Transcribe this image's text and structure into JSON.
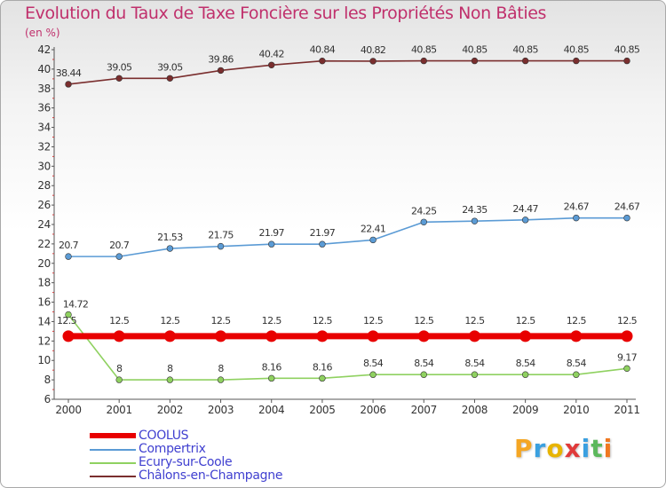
{
  "chart_data": {
    "type": "line",
    "title": "Evolution du Taux de Taxe Foncière sur les Propriétés Non Bâties",
    "unit_label": "(en %)",
    "xlabel": "",
    "ylabel": "",
    "x": [
      "2000",
      "2001",
      "2002",
      "2003",
      "2004",
      "2005",
      "2006",
      "2007",
      "2008",
      "2009",
      "2010",
      "2011"
    ],
    "ylim": [
      6,
      42
    ],
    "yticks": [
      6,
      8,
      10,
      12,
      14,
      16,
      18,
      20,
      22,
      24,
      26,
      28,
      30,
      32,
      34,
      36,
      38,
      40,
      42
    ],
    "grid": false,
    "legend_position": "bottom-left",
    "series": [
      {
        "name": "COOLUS",
        "color": "#e80000",
        "values": [
          12.5,
          12.5,
          12.5,
          12.5,
          12.5,
          12.5,
          12.5,
          12.5,
          12.5,
          12.5,
          12.5,
          12.5
        ],
        "labels": [
          "12.5",
          "12.5",
          "12.5",
          "12.5",
          "12.5",
          "12.5",
          "12.5",
          "12.5",
          "12.5",
          "12.5",
          "12.5",
          "12.5"
        ]
      },
      {
        "name": "Compertrix",
        "color": "#5b9bd5",
        "values": [
          20.7,
          20.7,
          21.53,
          21.75,
          21.97,
          21.97,
          22.41,
          24.25,
          24.35,
          24.47,
          24.67,
          24.67
        ],
        "labels": [
          "20.7",
          "20.7",
          "21.53",
          "21.75",
          "21.97",
          "21.97",
          "22.41",
          "24.25",
          "24.35",
          "24.47",
          "24.67",
          "24.67"
        ]
      },
      {
        "name": "Ecury-sur-Coole",
        "color": "#8fd160",
        "values": [
          14.72,
          8,
          8,
          8,
          8.16,
          8.16,
          8.54,
          8.54,
          8.54,
          8.54,
          8.54,
          9.17
        ],
        "labels": [
          "14.72",
          "8",
          "8",
          "8",
          "8.16",
          "8.16",
          "8.54",
          "8.54",
          "8.54",
          "8.54",
          "8.54",
          "9.17"
        ]
      },
      {
        "name": "Châlons-en-Champagne",
        "color": "#7a2e2e",
        "values": [
          38.44,
          39.05,
          39.05,
          39.86,
          40.42,
          40.84,
          40.82,
          40.85,
          40.85,
          40.85,
          40.85,
          40.85
        ],
        "labels": [
          "38.44",
          "39.05",
          "39.05",
          "39.86",
          "40.42",
          "40.84",
          "40.82",
          "40.85",
          "40.85",
          "40.85",
          "40.85",
          "40.85"
        ]
      }
    ]
  },
  "logo": {
    "text": "Proxiti",
    "colors": [
      "#f5a623",
      "#3aa0e0",
      "#e8b400",
      "#e03a3a",
      "#3aa0e0",
      "#5cb85c",
      "#f07820"
    ]
  }
}
